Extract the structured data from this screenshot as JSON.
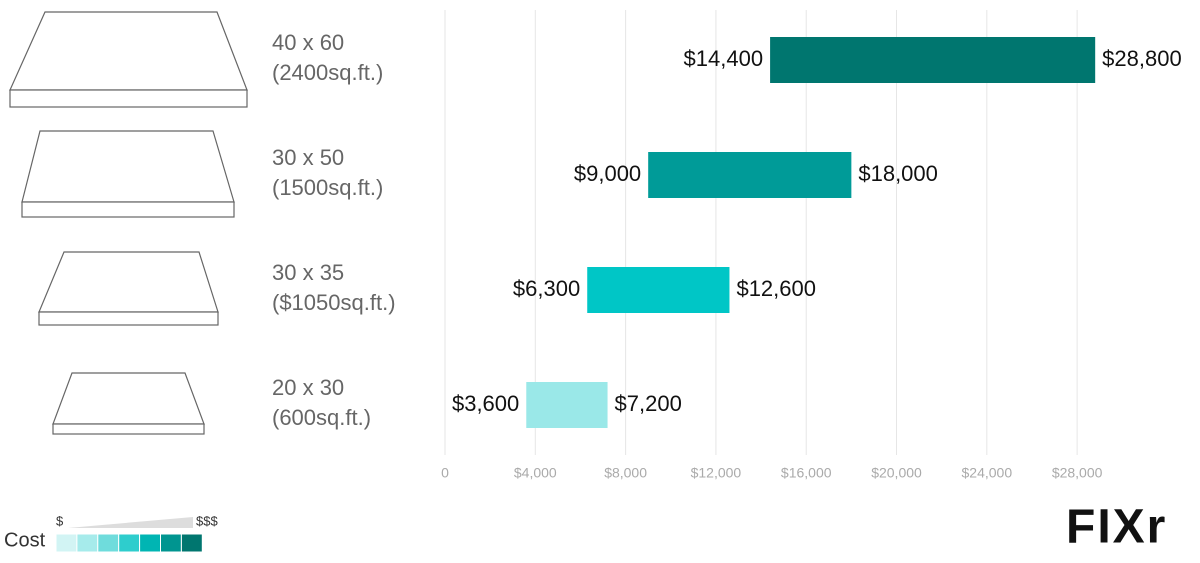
{
  "chart_data": {
    "type": "range-bar",
    "categories": [
      "40 x 60",
      "30 x 50",
      "30 x 35",
      "20 x 30"
    ],
    "category_sublabels": [
      "(2400sq.ft.)",
      "(1500sq.ft.)",
      "($1050sq.ft.)",
      "(600sq.ft.)"
    ],
    "low": {
      "values": [
        14400,
        9000,
        6300,
        3600
      ],
      "value_labels": [
        "$14,400",
        "$9,000",
        "$6,300",
        "$3,600"
      ]
    },
    "high": {
      "values": [
        28800,
        18000,
        12600,
        7200
      ],
      "value_labels": [
        "$28,800",
        "$18,000",
        "$12,600",
        "$7,200"
      ]
    },
    "colors": [
      "#00766f",
      "#009b98",
      "#00c6c6",
      "#9ae8e8"
    ],
    "xlim": [
      0,
      33000
    ],
    "xticks": [
      0,
      {
        "value": 4000,
        "label": "$4,000"
      },
      {
        "value": 8000,
        "label": "$8,000"
      },
      {
        "value": 12000,
        "label": "$12,000"
      },
      {
        "value": 16000,
        "label": "$16,000"
      },
      {
        "value": 20000,
        "label": "$20,000"
      },
      {
        "value": 24000,
        "label": "$24,000"
      },
      {
        "value": 28000,
        "label": "$28,000"
      }
    ],
    "grid": true,
    "legend": {
      "title": "Cost",
      "low_label": "$",
      "high_label": "$$$",
      "colors": [
        "#d2f4f4",
        "#a6ebeb",
        "#6fdcdc",
        "#2ecdcd",
        "#00b5b3",
        "#009590",
        "#00766f"
      ]
    },
    "logo": "FIXr"
  }
}
